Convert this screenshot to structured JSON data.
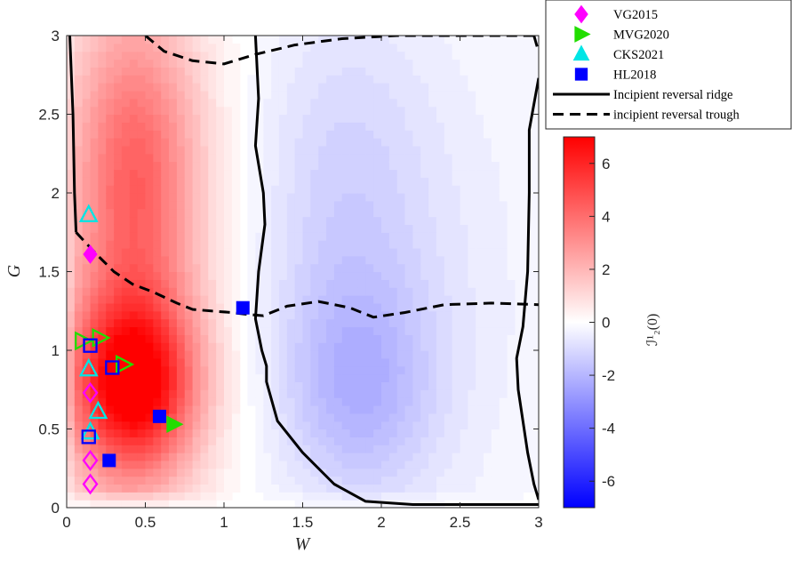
{
  "chart_data": {
    "type": "heatmap",
    "title": "",
    "xlabel": "W",
    "ylabel": "G",
    "xlim": [
      0,
      3
    ],
    "ylim": [
      0,
      3
    ],
    "xticks": [
      "0",
      "0.5",
      "1",
      "1.5",
      "2",
      "2.5",
      "3"
    ],
    "yticks": [
      "0",
      "0.5",
      "1",
      "1.5",
      "2",
      "2.5",
      "3"
    ],
    "colorbar": {
      "label": "ℐ¹₂(0)",
      "range": [
        -7,
        7
      ],
      "ticks": [
        "6",
        "4",
        "2",
        "0",
        "-2",
        "-4",
        "-6"
      ],
      "colors": {
        "max": "#ff0000",
        "mid": "#ffffff",
        "min": "#0000ff"
      }
    },
    "legend": {
      "placement": "top-right outside",
      "entries": [
        {
          "label": "VG2015",
          "marker": "diamond",
          "color": "#ff00ff"
        },
        {
          "label": "MVG2020",
          "marker": "triangle-right",
          "color": "#22dd00"
        },
        {
          "label": "CKS2021",
          "marker": "triangle-up",
          "color": "#00e5e5"
        },
        {
          "label": "HL2018",
          "marker": "square",
          "color": "#0000ff"
        },
        {
          "label": "Incipient reversal ridge",
          "marker": "solid-line",
          "color": "#000000"
        },
        {
          "label": "incipient reversal trough",
          "marker": "dashed-line",
          "color": "#000000"
        }
      ]
    },
    "series": [
      {
        "name": "VG2015",
        "points": [
          {
            "x": 0.15,
            "y": 1.61,
            "filled": true
          },
          {
            "x": 0.15,
            "y": 0.73,
            "filled": false
          },
          {
            "x": 0.15,
            "y": 0.3,
            "filled": false
          },
          {
            "x": 0.15,
            "y": 0.15,
            "filled": false
          }
        ]
      },
      {
        "name": "MVG2020",
        "points": [
          {
            "x": 0.68,
            "y": 0.53,
            "filled": true
          },
          {
            "x": 0.1,
            "y": 1.06,
            "filled": false
          },
          {
            "x": 0.21,
            "y": 1.08,
            "filled": false
          },
          {
            "x": 0.36,
            "y": 0.91,
            "filled": false
          }
        ]
      },
      {
        "name": "CKS2021",
        "points": [
          {
            "x": 0.14,
            "y": 1.86,
            "filled": false
          },
          {
            "x": 0.14,
            "y": 0.88,
            "filled": false
          },
          {
            "x": 0.2,
            "y": 0.61,
            "filled": false
          },
          {
            "x": 0.15,
            "y": 0.48,
            "filled": false
          }
        ]
      },
      {
        "name": "HL2018",
        "points": [
          {
            "x": 1.12,
            "y": 1.27,
            "filled": true
          },
          {
            "x": 0.59,
            "y": 0.58,
            "filled": true
          },
          {
            "x": 0.27,
            "y": 0.3,
            "filled": true
          },
          {
            "x": 0.15,
            "y": 1.03,
            "filled": false
          },
          {
            "x": 0.29,
            "y": 0.89,
            "filled": false
          },
          {
            "x": 0.14,
            "y": 0.45,
            "filled": false
          }
        ]
      }
    ],
    "ridge_lines": [
      [
        [
          0.02,
          3.0
        ],
        [
          0.04,
          2.5
        ],
        [
          0.05,
          2.0
        ],
        [
          0.06,
          1.75
        ]
      ],
      [
        [
          1.2,
          3.0
        ],
        [
          1.22,
          2.6
        ],
        [
          1.2,
          2.3
        ],
        [
          1.25,
          2.0
        ],
        [
          1.26,
          1.8
        ],
        [
          1.22,
          1.5
        ],
        [
          1.2,
          1.2
        ],
        [
          1.24,
          1.0
        ],
        [
          1.27,
          0.9
        ],
        [
          1.27,
          0.8
        ],
        [
          1.34,
          0.55
        ],
        [
          1.5,
          0.35
        ],
        [
          1.7,
          0.15
        ],
        [
          1.9,
          0.04
        ],
        [
          2.2,
          0.02
        ],
        [
          2.6,
          0.02
        ],
        [
          3.0,
          0.02
        ]
      ],
      [
        [
          2.97,
          3.0
        ],
        [
          2.99,
          2.93
        ]
      ],
      [
        [
          3.0,
          2.73
        ],
        [
          2.94,
          2.4
        ],
        [
          2.94,
          2.0
        ],
        [
          2.93,
          1.5
        ],
        [
          2.9,
          1.15
        ],
        [
          2.86,
          0.95
        ],
        [
          2.87,
          0.75
        ],
        [
          2.9,
          0.55
        ],
        [
          2.93,
          0.35
        ],
        [
          2.97,
          0.15
        ],
        [
          3.0,
          0.05
        ]
      ]
    ],
    "trough_lines": [
      [
        [
          0.06,
          1.75
        ],
        [
          0.18,
          1.62
        ],
        [
          0.3,
          1.5
        ],
        [
          0.42,
          1.42
        ],
        [
          0.55,
          1.37
        ],
        [
          0.7,
          1.3
        ],
        [
          0.8,
          1.26
        ],
        [
          0.92,
          1.25
        ],
        [
          1.05,
          1.24
        ],
        [
          1.13,
          1.23
        ],
        [
          1.25,
          1.22
        ],
        [
          1.4,
          1.28
        ],
        [
          1.6,
          1.31
        ],
        [
          1.8,
          1.27
        ],
        [
          1.95,
          1.21
        ],
        [
          2.15,
          1.24
        ],
        [
          2.4,
          1.29
        ],
        [
          2.7,
          1.3
        ],
        [
          3.0,
          1.29
        ]
      ],
      [
        [
          0.5,
          3.0
        ],
        [
          0.62,
          2.9
        ],
        [
          0.8,
          2.84
        ],
        [
          1.0,
          2.82
        ],
        [
          1.2,
          2.88
        ],
        [
          1.45,
          2.94
        ],
        [
          1.75,
          2.98
        ],
        [
          2.1,
          3.0
        ],
        [
          2.5,
          3.0
        ],
        [
          2.97,
          3.0
        ]
      ]
    ],
    "field_peaks": [
      {
        "x": 0.42,
        "y": 0.78,
        "value": 6.2,
        "sx": 0.28,
        "sy": 0.38
      },
      {
        "x": 0.45,
        "y": 2.15,
        "value": 2.6,
        "sx": 0.28,
        "sy": 0.7
      },
      {
        "x": 0.4,
        "y": 1.5,
        "value": 2.0,
        "sx": 0.35,
        "sy": 1.4
      },
      {
        "x": 1.85,
        "y": 0.75,
        "value": -1.6,
        "sx": 0.35,
        "sy": 0.5
      },
      {
        "x": 1.75,
        "y": 2.0,
        "value": -1.0,
        "sx": 0.4,
        "sy": 0.9
      },
      {
        "x": 2.3,
        "y": 1.4,
        "value": -0.5,
        "sx": 0.6,
        "sy": 1.3
      }
    ]
  }
}
